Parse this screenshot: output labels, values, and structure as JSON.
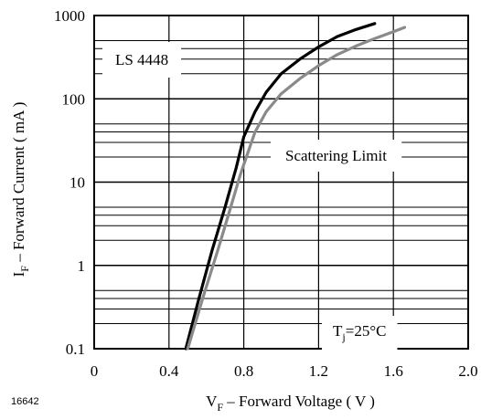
{
  "chart_data": {
    "type": "line",
    "figure_number": "16642",
    "xlabel": {
      "main": "V",
      "sub": "F",
      "rest": " – Forward Voltage ( V )"
    },
    "ylabel": {
      "main": "I",
      "sub": "F",
      "rest": " – Forward Current ( mA )"
    },
    "x_ticks": [
      "0",
      "0.4",
      "0.8",
      "1.2",
      "1.6",
      "2.0"
    ],
    "x_tick_values": [
      0,
      0.4,
      0.8,
      1.2,
      1.6,
      2.0
    ],
    "y_ticks": [
      "0.1",
      "1",
      "10",
      "100",
      "1000"
    ],
    "y_tick_values": [
      0.1,
      1,
      10,
      100,
      1000
    ],
    "xlim": [
      0,
      2.0
    ],
    "ylim": [
      0.1,
      1000
    ],
    "y_scale": "log",
    "grid": true,
    "annotations": {
      "device": "LS 4448",
      "scattering": "Scattering Limit",
      "temperature": {
        "main": "T",
        "sub": "j",
        "rest": "=25°C"
      }
    },
    "series": [
      {
        "color": "#000000",
        "x": [
          0.49,
          0.56,
          0.63,
          0.7,
          0.76,
          0.8,
          0.86,
          0.92,
          1.0,
          1.1,
          1.2,
          1.3,
          1.4,
          1.5
        ],
        "y": [
          0.1,
          0.4,
          1.5,
          5,
          15,
          35,
          70,
          120,
          200,
          300,
          420,
          560,
          680,
          800
        ]
      },
      {
        "color": "#8a8a8a",
        "x": [
          0.5,
          0.58,
          0.66,
          0.73,
          0.78,
          0.82,
          0.86,
          0.92,
          1.0,
          1.1,
          1.2,
          1.3,
          1.4,
          1.5,
          1.6,
          1.66
        ],
        "y": [
          0.1,
          0.4,
          1.5,
          5,
          12,
          22,
          40,
          70,
          115,
          175,
          250,
          340,
          430,
          530,
          640,
          720
        ]
      }
    ]
  }
}
